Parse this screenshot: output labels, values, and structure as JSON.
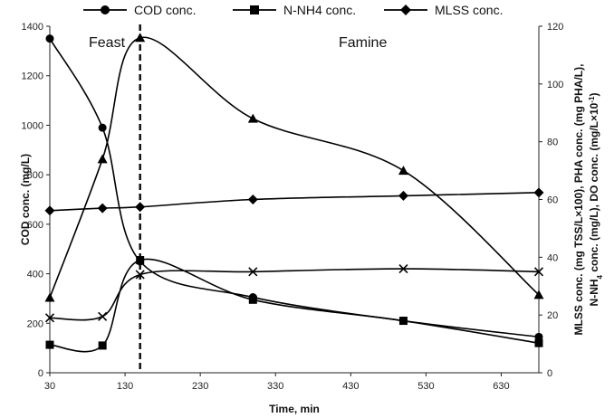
{
  "chart_data": {
    "type": "line",
    "xlabel": "Time, min",
    "ylabel_left": "COD conc. (mg/L)",
    "ylabel_right_line1": "MLSS conc. (mg TSS/L×100), PHA conc. (mg PHA/L),",
    "ylabel_right_line2_parts": [
      "N-NH",
      "4",
      " conc. (mg/L), DO conc. (mg/L×10",
      "-1",
      ")"
    ],
    "x_ticks": [
      30,
      130,
      230,
      330,
      430,
      530,
      630
    ],
    "xlim": [
      30,
      680
    ],
    "ylim_left": [
      0,
      1400
    ],
    "y_ticks_left": [
      0,
      200,
      400,
      600,
      800,
      1000,
      1200,
      1400
    ],
    "ylim_right": [
      0,
      120
    ],
    "y_ticks_right": [
      0,
      20,
      40,
      60,
      80,
      100,
      120
    ],
    "phase_divider_x": 150,
    "phases": [
      "Feast",
      "Famine"
    ],
    "series": [
      {
        "name": "COD conc.",
        "marker": "circle",
        "axis": "left",
        "x": [
          30,
          100,
          150,
          300,
          500,
          680
        ],
        "y": [
          1350,
          990,
          450,
          305,
          210,
          145
        ]
      },
      {
        "name": "N-NH4 conc.",
        "marker": "square",
        "axis": "left",
        "x": [
          30,
          100,
          150,
          300,
          500,
          680
        ],
        "y": [
          113,
          110,
          455,
          295,
          210,
          120
        ]
      },
      {
        "name": "MLSS conc.",
        "marker": "diamond",
        "axis": "left",
        "x": [
          30,
          100,
          150,
          300,
          500,
          680
        ],
        "y": [
          655,
          665,
          670,
          700,
          715,
          728
        ]
      },
      {
        "marker": "triangle",
        "axis": "right",
        "x": [
          30,
          100,
          150,
          300,
          500,
          680
        ],
        "y": [
          26,
          74,
          116,
          88,
          70,
          27
        ]
      },
      {
        "marker": "x",
        "axis": "right",
        "x": [
          30,
          100,
          150,
          300,
          500,
          680
        ],
        "y": [
          19,
          19.5,
          34,
          35,
          36,
          35
        ]
      }
    ]
  }
}
